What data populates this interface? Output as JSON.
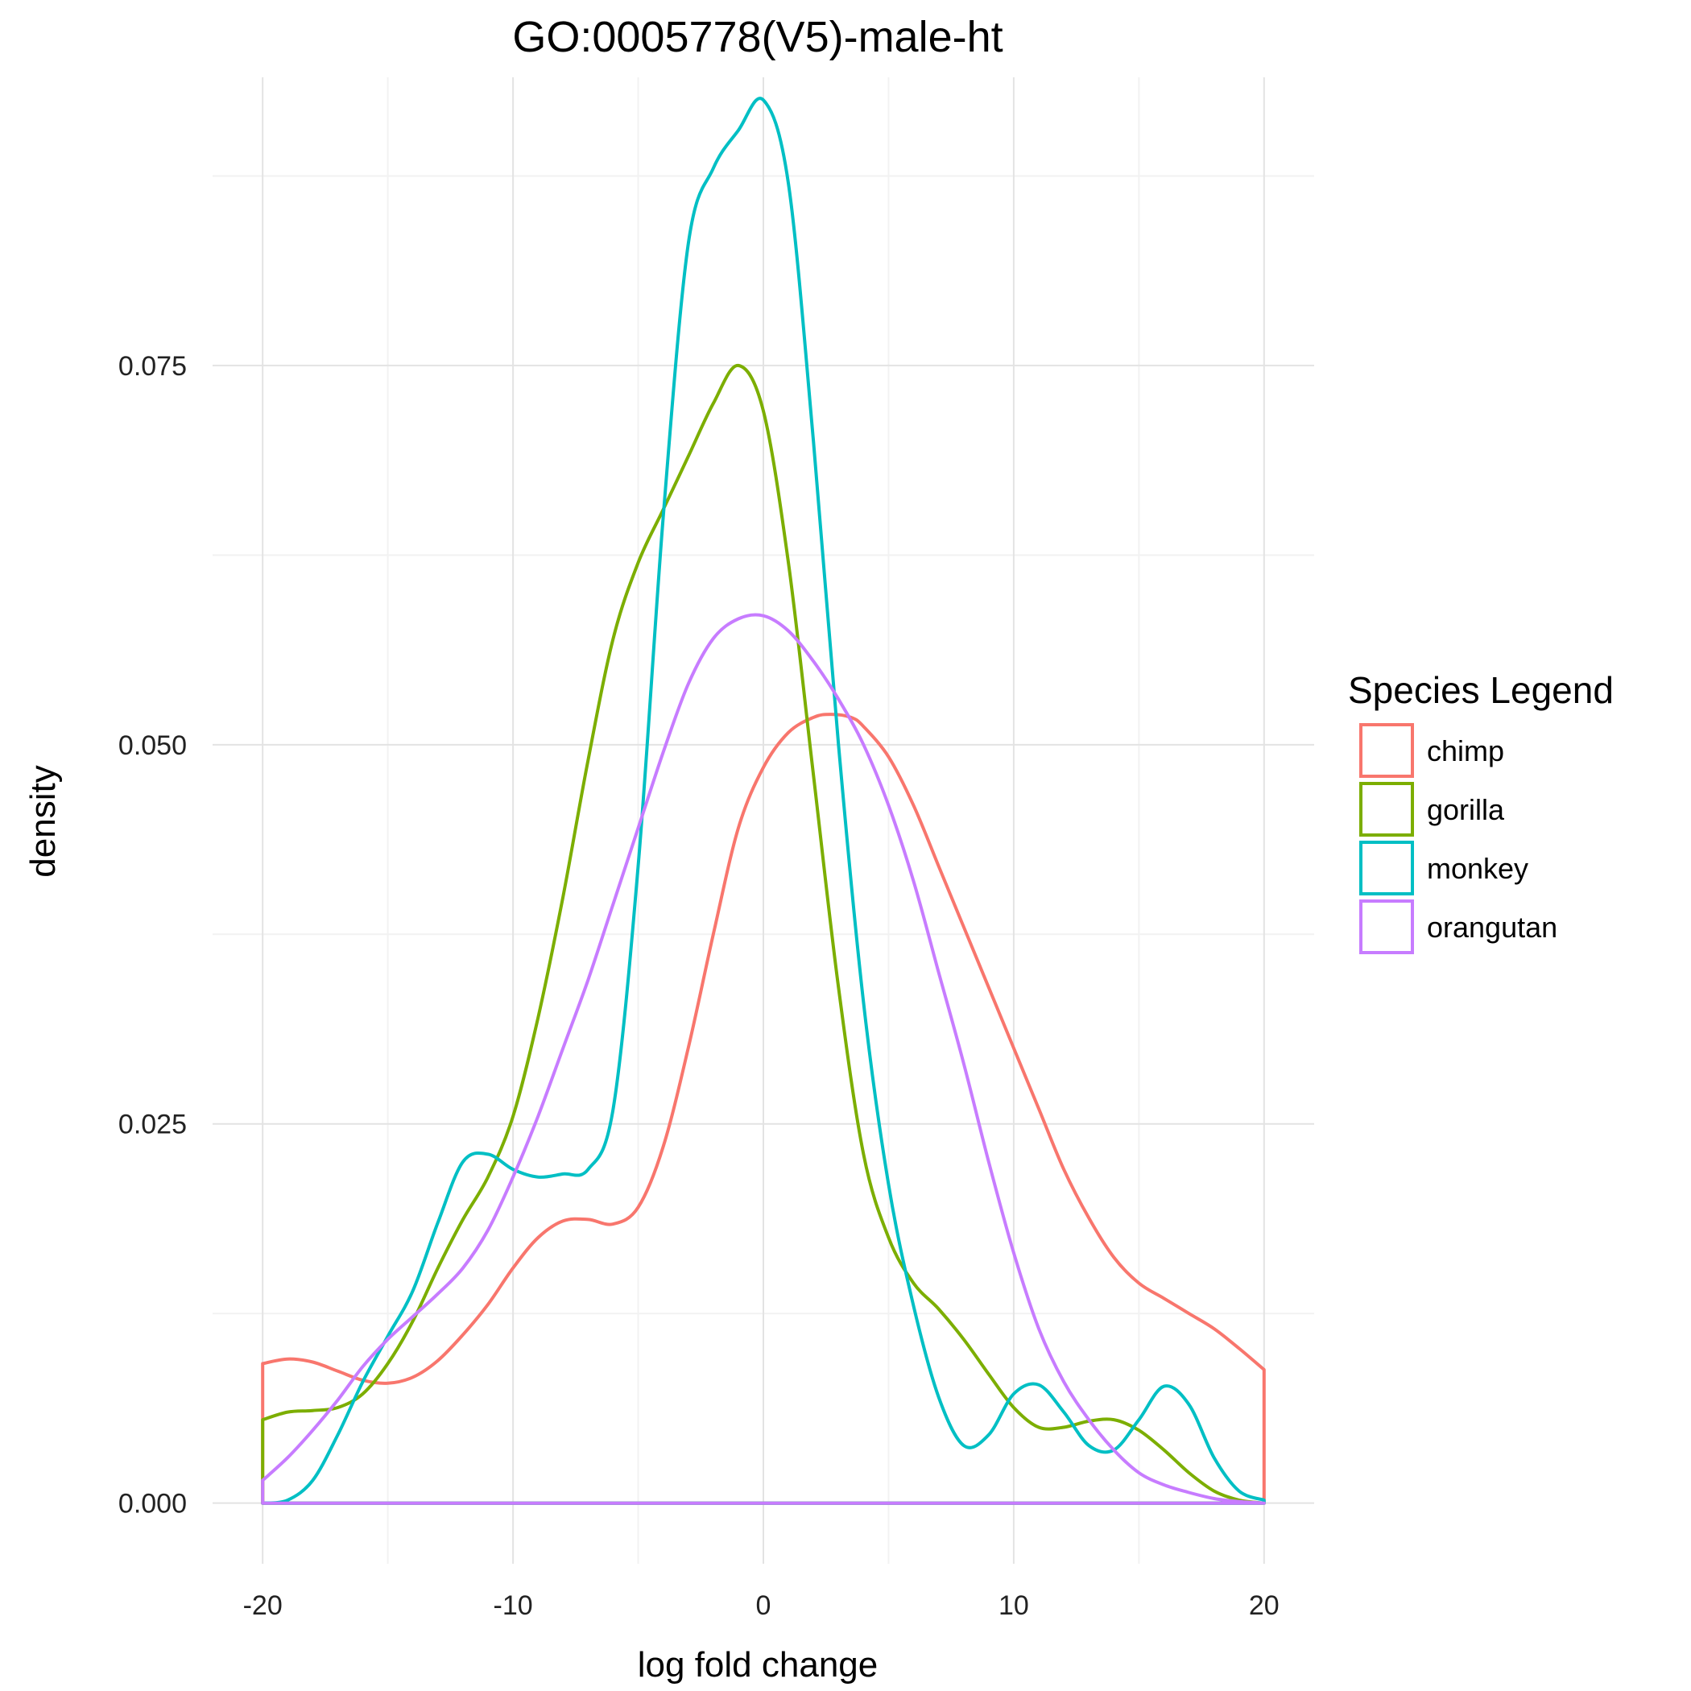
{
  "chart_data": {
    "type": "line",
    "title": "GO:0005778(V5)-male-ht",
    "xlabel": "log fold change",
    "ylabel": "density",
    "xlim": [
      -22,
      22
    ],
    "ylim": [
      -0.004,
      0.094
    ],
    "x_ticks": [
      -20,
      -10,
      0,
      10,
      20
    ],
    "x_tick_labels": [
      "-20",
      "-10",
      "0",
      "10",
      "20"
    ],
    "y_ticks": [
      0,
      0.025,
      0.05,
      0.075
    ],
    "y_tick_labels": [
      "0.000",
      "0.025",
      "0.050",
      "0.075"
    ],
    "x_minor": [
      -15,
      -5,
      5,
      15
    ],
    "y_minor": [
      0.0125,
      0.0375,
      0.0625,
      0.0875
    ],
    "grid": true,
    "legend": {
      "title": "Species Legend",
      "position": "right"
    },
    "series": [
      {
        "name": "chimp",
        "color": "#F8766D",
        "x": [
          -20,
          -19,
          -18,
          -17,
          -16,
          -15,
          -14,
          -13,
          -12,
          -11,
          -10,
          -9,
          -8,
          -7,
          -6,
          -5,
          -4,
          -3,
          -2,
          -1,
          0,
          1,
          2,
          2.7,
          3.5,
          4,
          5,
          6,
          7,
          8,
          9,
          10,
          11,
          12,
          13,
          14,
          15,
          16,
          17,
          18,
          19,
          20
        ],
        "y": [
          0.0092,
          0.0095,
          0.0093,
          0.0087,
          0.0081,
          0.0079,
          0.0083,
          0.0094,
          0.0111,
          0.0131,
          0.0155,
          0.0175,
          0.0186,
          0.0187,
          0.0184,
          0.0195,
          0.0235,
          0.03,
          0.0375,
          0.0445,
          0.0485,
          0.0508,
          0.0518,
          0.052,
          0.0518,
          0.0512,
          0.0492,
          0.046,
          0.042,
          0.038,
          0.034,
          0.03,
          0.026,
          0.022,
          0.0188,
          0.0162,
          0.0145,
          0.0135,
          0.0125,
          0.0115,
          0.0102,
          0.0088
        ]
      },
      {
        "name": "gorilla",
        "color": "#7CAE00",
        "x": [
          -20,
          -19,
          -18,
          -17,
          -16,
          -15,
          -14,
          -13,
          -12,
          -11,
          -10,
          -9,
          -8,
          -7,
          -6,
          -5,
          -4,
          -3,
          -2,
          -1,
          0,
          1,
          2,
          3,
          4,
          5,
          6,
          7,
          8,
          9,
          10,
          11,
          12,
          13,
          14,
          15,
          16,
          17,
          18,
          19,
          20
        ],
        "y": [
          0.0055,
          0.006,
          0.0061,
          0.0063,
          0.0072,
          0.0092,
          0.012,
          0.0155,
          0.0187,
          0.0215,
          0.0255,
          0.032,
          0.04,
          0.049,
          0.057,
          0.062,
          0.0655,
          0.069,
          0.0725,
          0.075,
          0.072,
          0.062,
          0.048,
          0.034,
          0.023,
          0.0175,
          0.0145,
          0.0128,
          0.0108,
          0.0085,
          0.0063,
          0.005,
          0.005,
          0.0054,
          0.0055,
          0.0048,
          0.0035,
          0.002,
          0.0008,
          0.0002,
          0.0
        ]
      },
      {
        "name": "monkey",
        "color": "#00BFC4",
        "x": [
          -20,
          -19,
          -18,
          -17,
          -16,
          -15,
          -14,
          -13,
          -12,
          -11,
          -10,
          -9,
          -8,
          -7,
          -6,
          -5,
          -4,
          -3,
          -2,
          -1,
          0,
          1,
          2,
          3,
          4,
          5,
          6,
          7,
          8,
          9,
          10,
          11,
          12,
          13,
          14,
          15,
          16,
          17,
          18,
          19,
          20
        ],
        "y": [
          0.0,
          0.0002,
          0.0015,
          0.0045,
          0.008,
          0.011,
          0.014,
          0.0185,
          0.0225,
          0.023,
          0.022,
          0.0215,
          0.0217,
          0.022,
          0.026,
          0.042,
          0.065,
          0.083,
          0.088,
          0.0905,
          0.0925,
          0.087,
          0.07,
          0.05,
          0.033,
          0.021,
          0.013,
          0.007,
          0.0038,
          0.0045,
          0.0072,
          0.0078,
          0.006,
          0.0038,
          0.0035,
          0.0055,
          0.0077,
          0.0065,
          0.003,
          0.0008,
          0.0002
        ]
      },
      {
        "name": "orangutan",
        "color": "#C77CFF",
        "x": [
          -20,
          -19,
          -18,
          -17,
          -16,
          -15,
          -14,
          -13,
          -12,
          -11,
          -10,
          -9,
          -8,
          -7,
          -6,
          -5,
          -4,
          -3,
          -2,
          -1,
          0,
          1,
          2,
          3,
          4,
          5,
          6,
          7,
          8,
          9,
          10,
          11,
          12,
          13,
          14,
          15,
          16,
          17,
          18,
          19,
          20
        ],
        "y": [
          0.0015,
          0.003,
          0.0048,
          0.0068,
          0.009,
          0.0108,
          0.0123,
          0.0138,
          0.0155,
          0.018,
          0.0215,
          0.0255,
          0.03,
          0.0345,
          0.0395,
          0.0445,
          0.0495,
          0.054,
          0.057,
          0.0583,
          0.0585,
          0.0575,
          0.0555,
          0.053,
          0.05,
          0.046,
          0.041,
          0.035,
          0.029,
          0.0225,
          0.0165,
          0.0115,
          0.008,
          0.0055,
          0.0035,
          0.002,
          0.0012,
          0.0007,
          0.0003,
          0.0001,
          0.0
        ]
      }
    ]
  }
}
